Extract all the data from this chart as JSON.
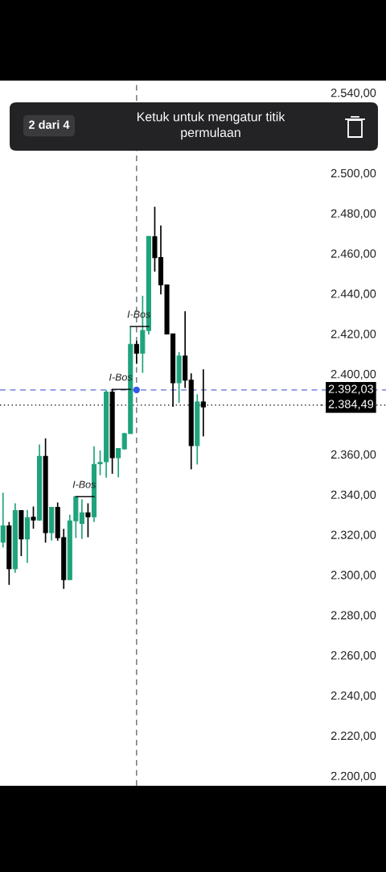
{
  "chart_data": {
    "type": "candlestick",
    "categories": [
      null,
      null,
      null,
      null,
      null,
      null,
      null,
      null,
      null,
      null,
      null,
      null,
      null,
      null,
      null,
      null,
      null,
      null,
      null,
      null,
      null,
      null,
      null,
      null,
      null,
      null,
      null,
      null,
      null,
      null,
      null,
      null,
      null,
      null,
      null,
      null,
      null,
      null,
      null,
      null,
      null,
      null,
      null,
      null,
      null,
      null,
      null,
      null,
      null,
      null,
      null,
      null,
      null
    ],
    "ohlc": [
      [
        2316.3,
        2340.9,
        2313.6,
        2324.3
      ],
      [
        2324.3,
        2326.3,
        2295,
        2303
      ],
      [
        2303,
        2335.6,
        2301,
        2332
      ],
      [
        2332,
        2332,
        2309.3,
        2317.9
      ],
      [
        2317.9,
        2332.3,
        2305.9,
        2328.5
      ],
      [
        2328.7,
        2334,
        2323,
        2327.3
      ],
      [
        2327.3,
        2364.9,
        2326.9,
        2358.9
      ],
      [
        2358.9,
        2367.9,
        2316,
        2321
      ],
      [
        2321,
        2333.6,
        2317,
        2333.6
      ],
      [
        2333.6,
        2336,
        2317,
        2318.5
      ],
      [
        2318.5,
        2322.9,
        2293,
        2297.6
      ],
      [
        2297.6,
        2329.9,
        2297.4,
        2326.9
      ],
      [
        2326.9,
        2338.9,
        2318.3,
        2338.9
      ],
      [
        2325.6,
        2337.6,
        2317.9,
        2330.9
      ],
      [
        2330.9,
        2335.6,
        2318.7,
        2328.9
      ],
      [
        2328.9,
        2364,
        2326.3,
        2354.9
      ],
      [
        2355.3,
        2361.9,
        2349.6,
        2355.9
      ],
      [
        2356.3,
        2392,
        2348.3,
        2390.9
      ],
      [
        2390.9,
        2392.3,
        2350.3,
        2358.3
      ],
      [
        2358.3,
        2362.9,
        2348.5,
        2362.9
      ],
      [
        2362.7,
        2370.7,
        2362.3,
        2370.3
      ],
      [
        2370.3,
        2423.6,
        2370.3,
        2414.7
      ],
      [
        2414.7,
        2416.5,
        2405,
        2410.3
      ],
      [
        2410.3,
        2438.9,
        2400.5,
        2421.6
      ],
      [
        2421.6,
        2468.5,
        2419.6,
        2468.5
      ],
      [
        2468.3,
        2483.2,
        2450.9,
        2457.9
      ],
      [
        2457.9,
        2473.9,
        2439.6,
        2444.3
      ],
      [
        2444.3,
        2444.3,
        2419.9,
        2419.9
      ],
      [
        2419.9,
        2419.9,
        2383.6,
        2395.6
      ],
      [
        2395.6,
        2410.9,
        2385.6,
        2408.9
      ],
      [
        2408.9,
        2431.2,
        2393,
        2396.9
      ],
      [
        2396.9,
        2400.3,
        2352.5,
        2364.3
      ],
      [
        2364.3,
        2389.9,
        2354.9,
        2386
      ],
      [
        2386,
        2402.3,
        2368.9,
        2383.6
      ],
      null,
      null,
      null,
      null,
      null,
      null,
      null,
      null,
      null,
      null,
      null,
      null,
      null,
      null,
      null,
      null,
      null,
      null,
      null
    ],
    "colors": [
      "#1fa37c",
      "#000000",
      "#1fa37c",
      "#000000",
      "#1fa37c",
      "#000000",
      "#1fa37c",
      "#000000",
      "#1fa37c",
      "#000000",
      "#000000",
      "#1fa37c",
      "#1fa37c",
      "#1fa37c",
      "#000000",
      "#1fa37c",
      "#1fa37c",
      "#1fa37c",
      "#000000",
      "#1fa37c",
      "#1fa37c",
      "#1fa37c",
      "#000000",
      "#1fa37c",
      "#1fa37c",
      "#000000",
      "#000000",
      "#000000",
      "#000000",
      "#1fa37c",
      "#000000",
      "#000000",
      "#1fa37c",
      "#000000",
      null,
      null,
      null,
      null,
      null,
      null,
      null,
      null,
      null,
      null,
      null,
      null,
      null,
      null,
      null,
      null,
      null,
      null,
      null
    ],
    "ylim": [
      2195,
      2546
    ],
    "yticks": [
      {
        "value": 2200,
        "label": "2.200,00"
      },
      {
        "value": 2220,
        "label": "2.220,00"
      },
      {
        "value": 2240,
        "label": "2.240,00"
      },
      {
        "value": 2260,
        "label": "2.260,00"
      },
      {
        "value": 2280,
        "label": "2.280,00"
      },
      {
        "value": 2300,
        "label": "2.300,00"
      },
      {
        "value": 2320,
        "label": "2.320,00"
      },
      {
        "value": 2340,
        "label": "2.340,00"
      },
      {
        "value": 2360,
        "label": "2.360,00"
      },
      {
        "value": 2400,
        "label": "2.400,00"
      },
      {
        "value": 2420,
        "label": "2.420,00"
      },
      {
        "value": 2440,
        "label": "2.440,00"
      },
      {
        "value": 2460,
        "label": "2.460,00"
      },
      {
        "value": 2480,
        "label": "2.480,00"
      },
      {
        "value": 2500,
        "label": "2.500,00"
      },
      {
        "value": 2540,
        "label": "2.540,00"
      }
    ],
    "tick_labels": "y",
    "grid": false,
    "ref_lines": [
      {
        "axis": "y",
        "value": 2392.03,
        "label": "2.392,03",
        "color": "#5b6bd6",
        "line_style": "dashed"
      },
      {
        "axis": "y",
        "value": 2384.49,
        "label": "2.384,49",
        "color": "#000000",
        "line_style": "dotted"
      }
    ],
    "annotations": [
      {
        "text": "I-Bos",
        "y": 2338.9
      },
      {
        "text": "I-Bos",
        "y": 2392.3
      },
      {
        "text": "I-Bos",
        "y": 2423.6
      },
      "2 dari 4",
      "Ketuk untuk mengatur titik\npermulaan"
    ]
  }
}
